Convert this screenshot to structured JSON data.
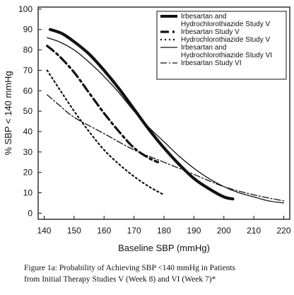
{
  "chart_data": {
    "type": "line",
    "xlabel": "Baseline SBP (mmHg)",
    "ylabel": "% SBP < 140 mmHg",
    "xlim": [
      138,
      222
    ],
    "ylim": [
      -3,
      101
    ],
    "x_ticks": [
      140,
      150,
      160,
      170,
      180,
      190,
      200,
      210,
      220
    ],
    "y_ticks": [
      0,
      10,
      20,
      30,
      40,
      50,
      60,
      70,
      80,
      90,
      100
    ],
    "grid": false,
    "legend_position": "top-right",
    "series": [
      {
        "name": "Irbesartan and Hydrochlorothiazide Study V",
        "legend_lines": [
          "Irbesartan and",
          "Hydrochlorothiazide Study V"
        ],
        "style": "thick-solid",
        "x": [
          142,
          146,
          150,
          155,
          160,
          165,
          170,
          175,
          180,
          185,
          190,
          195,
          200,
          203
        ],
        "y": [
          90,
          88,
          84,
          78,
          70,
          61,
          51,
          41,
          32,
          24,
          17,
          12,
          8,
          7
        ]
      },
      {
        "name": "Irbesartan Study V",
        "legend_lines": [
          "Irbesartan Study V"
        ],
        "style": "thick-dash-dot",
        "x": [
          141,
          145,
          150,
          155,
          160,
          165,
          170,
          175,
          178
        ],
        "y": [
          82,
          77,
          69,
          59,
          49,
          40,
          32,
          27,
          25
        ]
      },
      {
        "name": "Hydrochlorothiazide Study V",
        "legend_lines": [
          "Hydrochlorothiazide Study V"
        ],
        "style": "dotted",
        "x": [
          141,
          145,
          150,
          155,
          160,
          165,
          170,
          175,
          180
        ],
        "y": [
          70,
          61,
          50,
          40,
          31,
          24,
          18,
          13,
          9
        ]
      },
      {
        "name": "Irbesartan and Hydrochlorothiazide Study VI",
        "legend_lines": [
          "Irbesartan and",
          "Hydrochlorothiazide Study VI"
        ],
        "style": "thin-solid",
        "x": [
          141,
          145,
          150,
          155,
          160,
          165,
          170,
          175,
          180,
          185,
          190,
          195,
          200,
          205,
          210,
          215,
          220
        ],
        "y": [
          86,
          84,
          80,
          74,
          67,
          59,
          50,
          42,
          35,
          28,
          22,
          17,
          13,
          10,
          8,
          6,
          5
        ]
      },
      {
        "name": "Irbesartan Study VI",
        "legend_lines": [
          "Irbesartan Study VI"
        ],
        "style": "thin-dash-dot",
        "x": [
          141,
          145,
          150,
          160,
          170,
          180,
          190,
          200,
          210,
          220
        ],
        "y": [
          58,
          53,
          47,
          39,
          31,
          25,
          19,
          13,
          9,
          6
        ]
      }
    ]
  },
  "caption": {
    "line1": "Figure 1a: Probability of Achieving SBP <140 mmHg in Patients",
    "line2": "from Initial Therapy Studies V (Week 8) and VI (Week 7)*"
  }
}
